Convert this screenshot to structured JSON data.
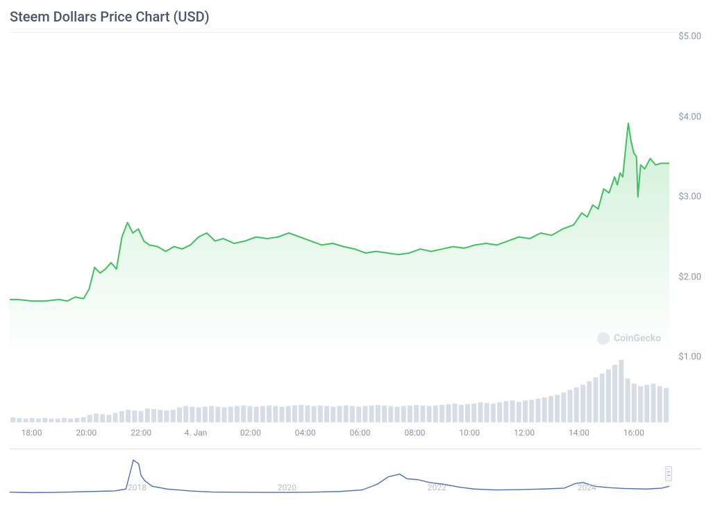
{
  "title": "Steem Dollars Price Chart (USD)",
  "watermark": "CoinGecko",
  "main_chart": {
    "type": "area",
    "line_color": "#3fbf60",
    "line_width": 2,
    "fill_top": "rgba(63,191,96,0.25)",
    "fill_bottom": "rgba(63,191,96,0.0)",
    "background_color": "#ffffff",
    "ylim": [
      1.0,
      5.0
    ],
    "yticks": [
      1.0,
      2.0,
      3.0,
      4.0,
      5.0
    ],
    "ytick_labels": [
      "$1.00",
      "$2.00",
      "$3.00",
      "$4.00",
      "$5.00"
    ],
    "x_domain": [
      17.2,
      41.3
    ],
    "xticks": [
      18,
      20,
      22,
      24,
      26,
      28,
      30,
      32,
      34,
      36,
      38,
      40
    ],
    "xtick_labels": [
      "18:00",
      "20:00",
      "22:00",
      "4. Jan",
      "02:00",
      "04:00",
      "06:00",
      "08:00",
      "10:00",
      "12:00",
      "14:00",
      "16:00"
    ],
    "series": [
      [
        17.2,
        1.72
      ],
      [
        17.5,
        1.72
      ],
      [
        18.0,
        1.7
      ],
      [
        18.5,
        1.7
      ],
      [
        19.0,
        1.72
      ],
      [
        19.3,
        1.7
      ],
      [
        19.6,
        1.75
      ],
      [
        19.9,
        1.73
      ],
      [
        20.1,
        1.85
      ],
      [
        20.3,
        2.12
      ],
      [
        20.5,
        2.05
      ],
      [
        20.7,
        2.1
      ],
      [
        20.9,
        2.18
      ],
      [
        21.1,
        2.1
      ],
      [
        21.3,
        2.5
      ],
      [
        21.5,
        2.68
      ],
      [
        21.7,
        2.55
      ],
      [
        21.9,
        2.6
      ],
      [
        22.1,
        2.45
      ],
      [
        22.3,
        2.4
      ],
      [
        22.6,
        2.38
      ],
      [
        22.9,
        2.32
      ],
      [
        23.2,
        2.38
      ],
      [
        23.5,
        2.35
      ],
      [
        23.8,
        2.4
      ],
      [
        24.1,
        2.5
      ],
      [
        24.4,
        2.55
      ],
      [
        24.7,
        2.45
      ],
      [
        25.0,
        2.48
      ],
      [
        25.4,
        2.42
      ],
      [
        25.8,
        2.45
      ],
      [
        26.2,
        2.5
      ],
      [
        26.6,
        2.48
      ],
      [
        27.0,
        2.5
      ],
      [
        27.4,
        2.55
      ],
      [
        27.8,
        2.5
      ],
      [
        28.2,
        2.45
      ],
      [
        28.6,
        2.4
      ],
      [
        29.0,
        2.42
      ],
      [
        29.4,
        2.38
      ],
      [
        29.8,
        2.35
      ],
      [
        30.2,
        2.3
      ],
      [
        30.6,
        2.32
      ],
      [
        31.0,
        2.3
      ],
      [
        31.4,
        2.28
      ],
      [
        31.8,
        2.3
      ],
      [
        32.2,
        2.35
      ],
      [
        32.6,
        2.32
      ],
      [
        33.0,
        2.35
      ],
      [
        33.4,
        2.38
      ],
      [
        33.8,
        2.36
      ],
      [
        34.2,
        2.4
      ],
      [
        34.6,
        2.42
      ],
      [
        35.0,
        2.4
      ],
      [
        35.4,
        2.45
      ],
      [
        35.8,
        2.5
      ],
      [
        36.2,
        2.48
      ],
      [
        36.6,
        2.55
      ],
      [
        37.0,
        2.52
      ],
      [
        37.4,
        2.6
      ],
      [
        37.8,
        2.65
      ],
      [
        38.1,
        2.8
      ],
      [
        38.3,
        2.75
      ],
      [
        38.5,
        2.9
      ],
      [
        38.7,
        2.85
      ],
      [
        38.9,
        3.1
      ],
      [
        39.1,
        3.05
      ],
      [
        39.3,
        3.25
      ],
      [
        39.4,
        3.15
      ],
      [
        39.5,
        3.3
      ],
      [
        39.6,
        3.25
      ],
      [
        39.7,
        3.6
      ],
      [
        39.8,
        3.92
      ],
      [
        39.9,
        3.7
      ],
      [
        40.0,
        3.55
      ],
      [
        40.1,
        3.5
      ],
      [
        40.15,
        3.0
      ],
      [
        40.25,
        3.4
      ],
      [
        40.4,
        3.35
      ],
      [
        40.6,
        3.48
      ],
      [
        40.8,
        3.4
      ],
      [
        41.0,
        3.42
      ],
      [
        41.2,
        3.42
      ],
      [
        41.3,
        3.42
      ]
    ]
  },
  "volume_chart": {
    "type": "bar",
    "bar_color": "#d7dde5",
    "x_domain": [
      17.2,
      41.3
    ],
    "ymax": 100,
    "values": [
      8,
      7,
      6,
      7,
      6,
      7,
      6,
      6,
      7,
      6,
      7,
      8,
      12,
      14,
      13,
      12,
      15,
      18,
      20,
      19,
      18,
      22,
      21,
      20,
      19,
      20,
      24,
      26,
      25,
      24,
      25,
      26,
      25,
      24,
      25,
      26,
      27,
      26,
      25,
      26,
      27,
      26,
      25,
      26,
      27,
      28,
      27,
      26,
      27,
      26,
      25,
      26,
      27,
      26,
      25,
      26,
      27,
      28,
      27,
      26,
      25,
      26,
      27,
      28,
      27,
      26,
      27,
      28,
      29,
      30,
      28,
      29,
      30,
      32,
      31,
      30,
      32,
      34,
      35,
      33,
      35,
      36,
      38,
      40,
      42,
      44,
      48,
      52,
      56,
      60,
      66,
      72,
      78,
      85,
      92,
      100,
      70,
      62,
      58,
      60,
      62,
      58,
      55
    ]
  },
  "navigator": {
    "type": "line",
    "line_color": "#4a6db8",
    "line_width": 1.4,
    "x_domain": [
      2016.3,
      2025.1
    ],
    "year_ticks": [
      2018,
      2020,
      2022,
      2024
    ],
    "ylim": [
      0,
      20
    ],
    "series": [
      [
        2016.3,
        0.8
      ],
      [
        2016.6,
        0.6
      ],
      [
        2016.9,
        0.7
      ],
      [
        2017.1,
        0.9
      ],
      [
        2017.4,
        1.2
      ],
      [
        2017.7,
        1.5
      ],
      [
        2017.85,
        2.5
      ],
      [
        2017.95,
        18.0
      ],
      [
        2018.02,
        16.0
      ],
      [
        2018.05,
        10.0
      ],
      [
        2018.1,
        7.0
      ],
      [
        2018.2,
        4.0
      ],
      [
        2018.4,
        2.5
      ],
      [
        2018.7,
        1.5
      ],
      [
        2019.0,
        0.9
      ],
      [
        2019.3,
        0.8
      ],
      [
        2019.7,
        0.7
      ],
      [
        2020.0,
        0.7
      ],
      [
        2020.3,
        0.8
      ],
      [
        2020.7,
        1.2
      ],
      [
        2021.0,
        2.0
      ],
      [
        2021.2,
        5.0
      ],
      [
        2021.35,
        9.0
      ],
      [
        2021.5,
        10.5
      ],
      [
        2021.6,
        8.0
      ],
      [
        2021.75,
        7.5
      ],
      [
        2021.9,
        6.0
      ],
      [
        2022.1,
        5.0
      ],
      [
        2022.3,
        3.5
      ],
      [
        2022.5,
        2.5
      ],
      [
        2022.8,
        2.0
      ],
      [
        2023.1,
        2.2
      ],
      [
        2023.4,
        2.5
      ],
      [
        2023.7,
        3.0
      ],
      [
        2023.85,
        5.5
      ],
      [
        2023.95,
        6.0
      ],
      [
        2024.1,
        4.0
      ],
      [
        2024.3,
        3.2
      ],
      [
        2024.5,
        2.8
      ],
      [
        2024.8,
        2.5
      ],
      [
        2025.0,
        3.0
      ],
      [
        2025.1,
        4.0
      ]
    ]
  }
}
